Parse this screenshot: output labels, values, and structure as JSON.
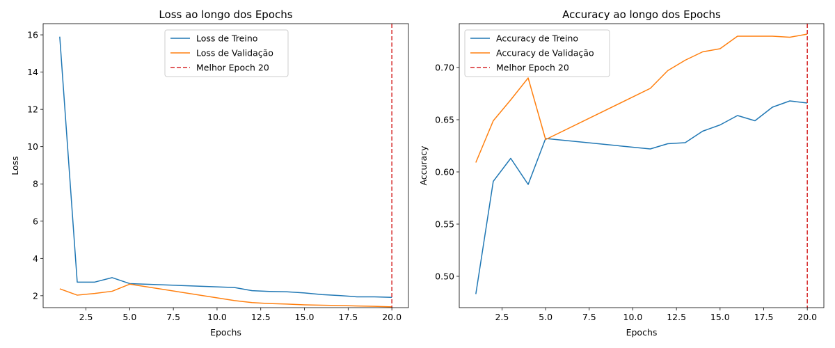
{
  "chart_data": [
    {
      "type": "line",
      "title": "Loss ao longo dos Epochs",
      "xlabel": "Epochs",
      "ylabel": "Loss",
      "xlim": [
        0.05,
        20.95
      ],
      "ylim": [
        1.36,
        16.6
      ],
      "xticks": [
        2.5,
        5.0,
        7.5,
        10.0,
        12.5,
        15.0,
        17.5,
        20.0
      ],
      "yticks": [
        2,
        4,
        6,
        8,
        10,
        12,
        14,
        16
      ],
      "xtick_labels": [
        "2.5",
        "5.0",
        "7.5",
        "10.0",
        "12.5",
        "15.0",
        "17.5",
        "20.0"
      ],
      "ytick_labels": [
        "2",
        "4",
        "6",
        "8",
        "10",
        "12",
        "14",
        "16"
      ],
      "grid": false,
      "legend": "upper center",
      "series": [
        {
          "name": "Loss de Treino",
          "color": "#1f77b4",
          "style": "solid",
          "x": [
            1,
            2,
            3,
            4,
            5,
            11,
            12,
            13,
            14,
            15,
            16,
            17,
            18,
            19,
            20
          ],
          "y": [
            15.9,
            2.73,
            2.73,
            2.97,
            2.65,
            2.44,
            2.27,
            2.23,
            2.21,
            2.15,
            2.06,
            2.01,
            1.94,
            1.94,
            1.91
          ]
        },
        {
          "name": "Loss de Validação",
          "color": "#ff7f0e",
          "style": "solid",
          "x": [
            1,
            2,
            3,
            4,
            5,
            11,
            12,
            13,
            14,
            15,
            16,
            17,
            18,
            19,
            20
          ],
          "y": [
            2.37,
            2.03,
            2.12,
            2.24,
            2.62,
            1.74,
            1.63,
            1.58,
            1.55,
            1.51,
            1.49,
            1.47,
            1.45,
            1.43,
            1.4
          ]
        }
      ],
      "vline": {
        "name": "Melhor Epoch 20",
        "x": 20,
        "color": "#d62728",
        "style": "dashed"
      }
    },
    {
      "type": "line",
      "title": "Accuracy ao longo dos Epochs",
      "xlabel": "Epochs",
      "ylabel": "Accuracy",
      "xlim": [
        0.05,
        20.95
      ],
      "ylim": [
        0.47,
        0.742
      ],
      "xticks": [
        2.5,
        5.0,
        7.5,
        10.0,
        12.5,
        15.0,
        17.5,
        20.0
      ],
      "yticks": [
        0.5,
        0.55,
        0.6,
        0.65,
        0.7
      ],
      "xtick_labels": [
        "2.5",
        "5.0",
        "7.5",
        "10.0",
        "12.5",
        "15.0",
        "17.5",
        "20.0"
      ],
      "ytick_labels": [
        "0.50",
        "0.55",
        "0.60",
        "0.65",
        "0.70"
      ],
      "grid": false,
      "legend": "upper left",
      "series": [
        {
          "name": "Accuracy de Treino",
          "color": "#1f77b4",
          "style": "solid",
          "x": [
            1,
            2,
            3,
            4,
            5,
            11,
            12,
            13,
            14,
            15,
            16,
            17,
            18,
            19,
            20
          ],
          "y": [
            0.483,
            0.591,
            0.613,
            0.588,
            0.632,
            0.622,
            0.627,
            0.628,
            0.639,
            0.645,
            0.654,
            0.649,
            0.662,
            0.668,
            0.666
          ]
        },
        {
          "name": "Accuracy de Validação",
          "color": "#ff7f0e",
          "style": "solid",
          "x": [
            1,
            2,
            3,
            4,
            5,
            11,
            12,
            13,
            14,
            15,
            16,
            17,
            18,
            19,
            20
          ],
          "y": [
            0.609,
            0.649,
            0.669,
            0.69,
            0.631,
            0.68,
            0.697,
            0.707,
            0.715,
            0.718,
            0.73,
            0.73,
            0.73,
            0.729,
            0.732
          ]
        }
      ],
      "vline": {
        "name": "Melhor Epoch 20",
        "x": 20,
        "color": "#d62728",
        "style": "dashed"
      }
    }
  ]
}
